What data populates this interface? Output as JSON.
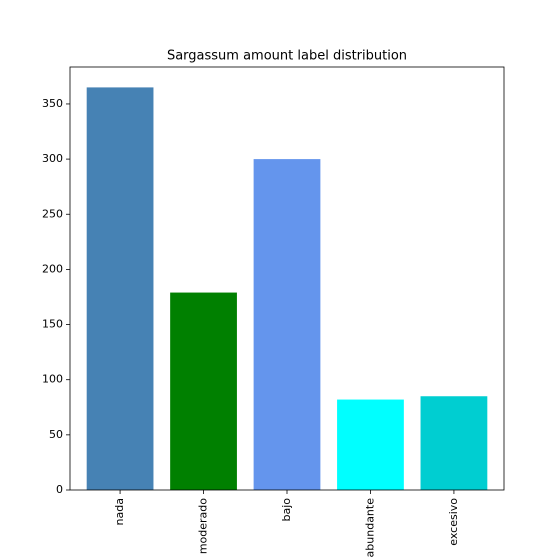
{
  "chart_data": {
    "type": "bar",
    "title": "Sargassum amount label distribution",
    "categories": [
      "nada",
      "moderado",
      "bajo",
      "abundante",
      "excesivo"
    ],
    "values": [
      365,
      179,
      300,
      82,
      85
    ],
    "colors": [
      "#4682b4",
      "#008000",
      "#6495ed",
      "#00ffff",
      "#00ced1"
    ],
    "ylim": [
      0,
      383.5
    ],
    "yticks": [
      0,
      50,
      100,
      150,
      200,
      250,
      300,
      350
    ],
    "grid": false
  }
}
